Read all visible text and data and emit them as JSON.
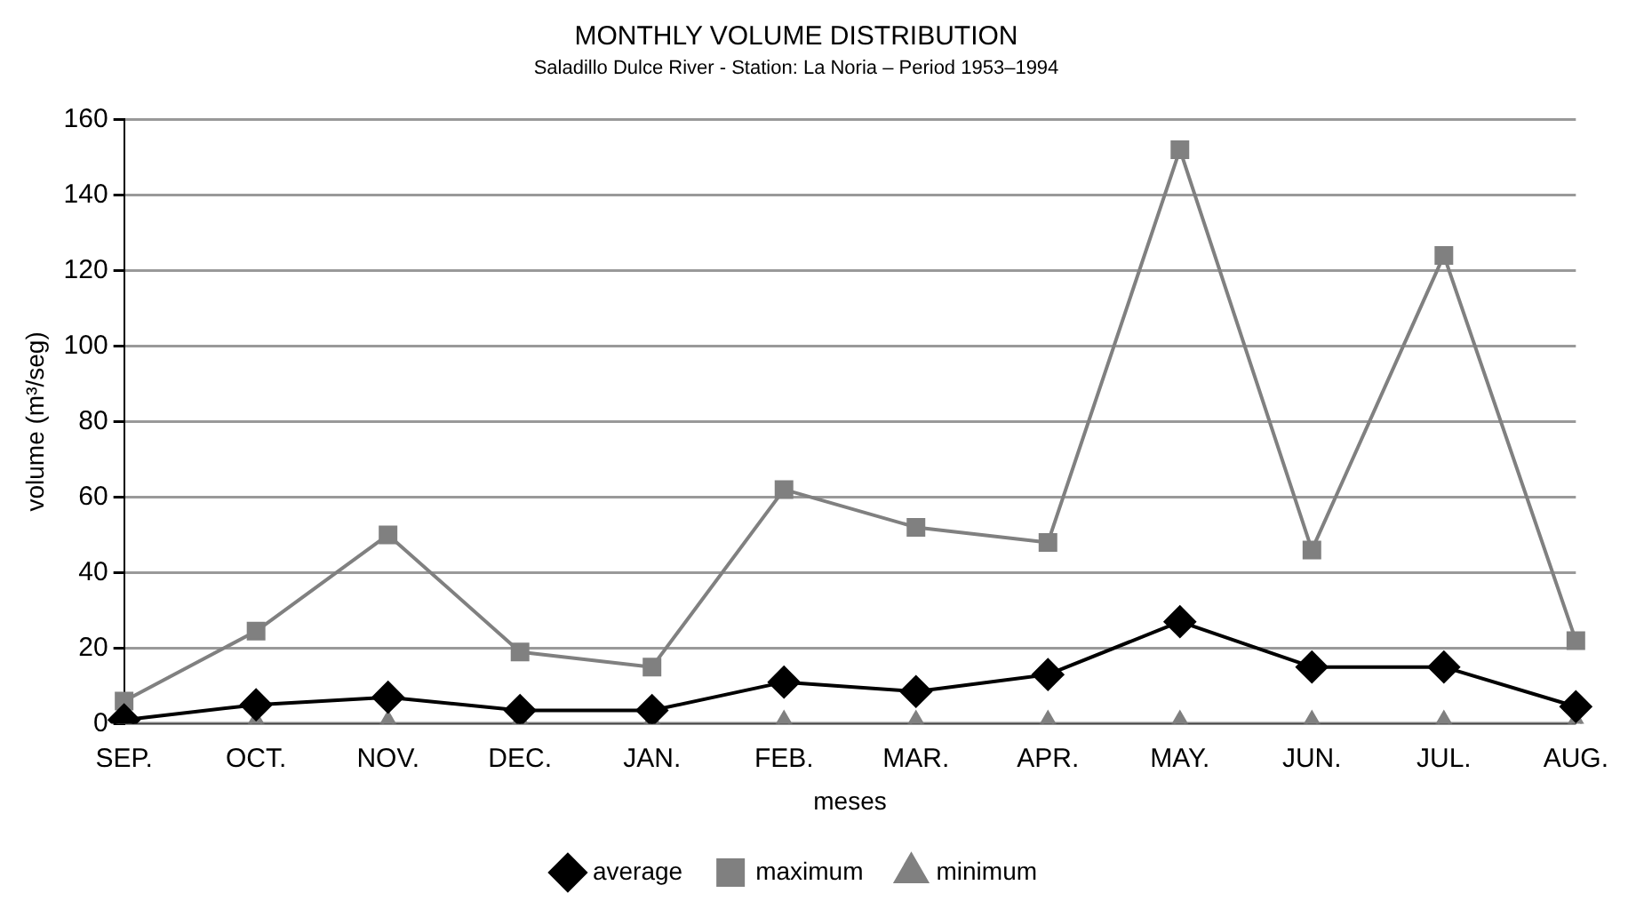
{
  "chart_data": {
    "type": "line",
    "title": "MONTHLY VOLUME DISTRIBUTION",
    "subtitle": "Saladillo Dulce River - Station: La Noria – Period 1953–1994",
    "xlabel": "meses",
    "ylabel": "volume (m³/seg)",
    "categories": [
      "SEP.",
      "OCT.",
      "NOV.",
      "DEC.",
      "JAN.",
      "FEB.",
      "MAR.",
      "APR.",
      "MAY.",
      "JUN.",
      "JUL.",
      "AUG."
    ],
    "series": [
      {
        "name": "average",
        "color": "#000000",
        "marker": "diamond",
        "values": [
          1,
          5,
          7,
          3.5,
          3.5,
          11,
          8.5,
          13,
          27,
          15,
          15,
          4.5
        ]
      },
      {
        "name": "maximum",
        "color": "#808080",
        "marker": "square",
        "values": [
          6,
          24.5,
          50,
          19,
          15,
          62,
          52,
          48,
          152,
          46,
          124,
          22
        ]
      },
      {
        "name": "minimum",
        "color": "#808080",
        "marker": "triangle",
        "values": [
          0,
          0,
          0,
          0,
          0,
          0,
          0,
          0,
          0,
          0,
          0,
          0
        ]
      }
    ],
    "ylim": [
      0,
      160
    ],
    "yticks": [
      0,
      20,
      40,
      60,
      80,
      100,
      120,
      140,
      160
    ],
    "grid": "y",
    "legend": "bottom",
    "line_style": "solid"
  }
}
